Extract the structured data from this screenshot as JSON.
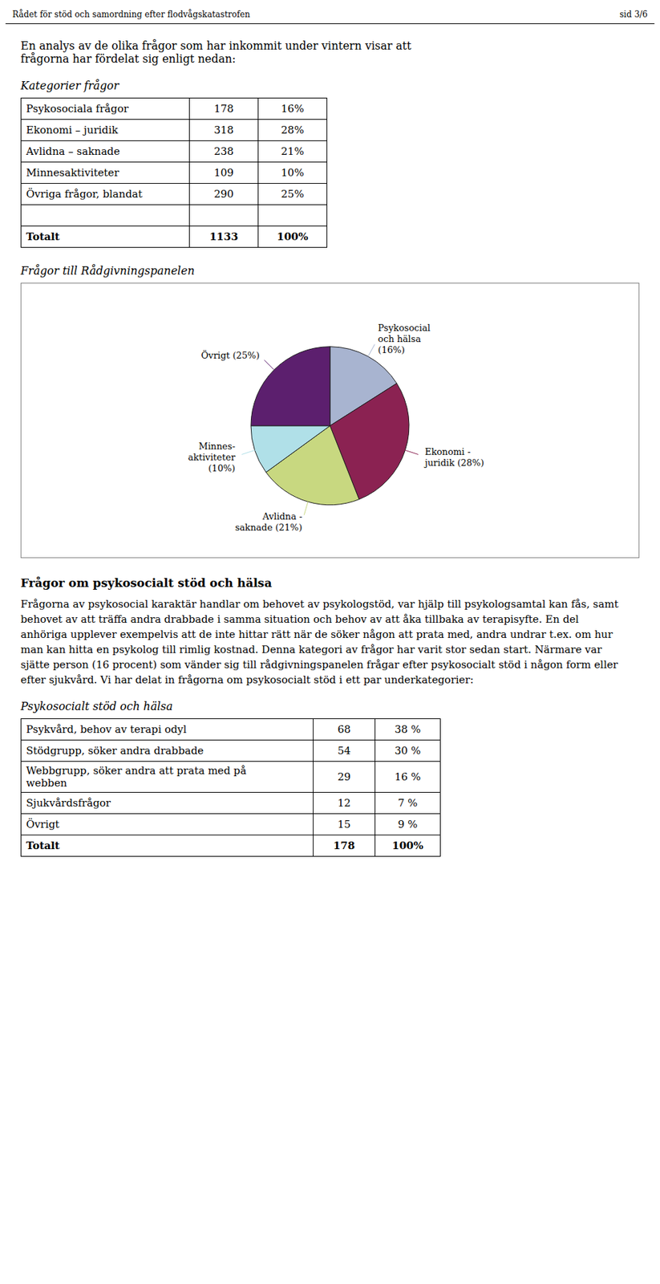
{
  "chart_data": {
    "type": "pie",
    "title": "Frågor till Rådgivningspanelen",
    "categories": [
      "Psykosocial\noch hälsa\n(16%)",
      "Ekonomi -\njuridik (28%)",
      "Avlidna -\nsaknade (21%)",
      "Minnes-\naktiviteter\n(10%)",
      "Övrigt (25%)"
    ],
    "values": [
      16,
      28,
      21,
      10,
      25
    ],
    "colors": [
      "#a8b4d0",
      "#8b2252",
      "#c8d880",
      "#b0e0e8",
      "#5c1f6e"
    ]
  },
  "header_left": "Rådet för stöd och samordning efter flodvågskatastrofen",
  "header_right": "sid 3/6",
  "intro_text": "En analys av de olika frågor som har inkommit under vintern visar att\nfrågorna har fördelat sig enligt nedan:",
  "table1_header": "Kategorier frågor",
  "table1_rows": [
    [
      "Psykosociala frågor",
      "178",
      "16%"
    ],
    [
      "Ekonomi – juridik",
      "318",
      "28%"
    ],
    [
      "Avlidna – saknade",
      "238",
      "21%"
    ],
    [
      "Minnesaktiviteter",
      "109",
      "10%"
    ],
    [
      "Övriga frågor, blandat",
      "290",
      "25%"
    ],
    [
      "",
      "",
      ""
    ],
    [
      "Totalt",
      "1133",
      "100%"
    ]
  ],
  "section2_title": "Frågor om psykosocialt stöd och hälsa",
  "section2_body": "Frågorna av psykosocial karaktär handlar om behovet av psykologstöd, var hjälp till psykologsamtal kan fås, samt behovet av att träffa andra drabbade i samma situation och behov av att åka tillbaka av terapisyfte. En del anhöriga upplever exempelvis att de inte hittar rätt när de söker någon att prata med, andra undrar t.ex. om hur man kan hitta en psykolog till rimlig kostnad. Denna kategori av frågor har varit stor sedan start. Närmare var sjätte person (16 procent) som vänder sig till rådgivningspanelen frågar efter psykosocialt stöd i någon form eller efter sjukvård. Vi har delat in frågorna om psykosocialt stöd i ett par underkategorier:",
  "table2_header": "Psykosocialt stöd och hälsa",
  "table2_rows": [
    [
      "Psykvård, behov av terapi odyl",
      "68",
      "38 %"
    ],
    [
      "Stödgrupp, söker andra drabbade",
      "54",
      "30 %"
    ],
    [
      "Webbgrupp, söker andra att prata med på\nwebben",
      "29",
      "16 %"
    ],
    [
      "Sjukvårdsfrågor",
      "12",
      "7 %"
    ],
    [
      "Övrigt",
      "15",
      "9 %"
    ],
    [
      "Totalt",
      "178",
      "100%"
    ]
  ]
}
